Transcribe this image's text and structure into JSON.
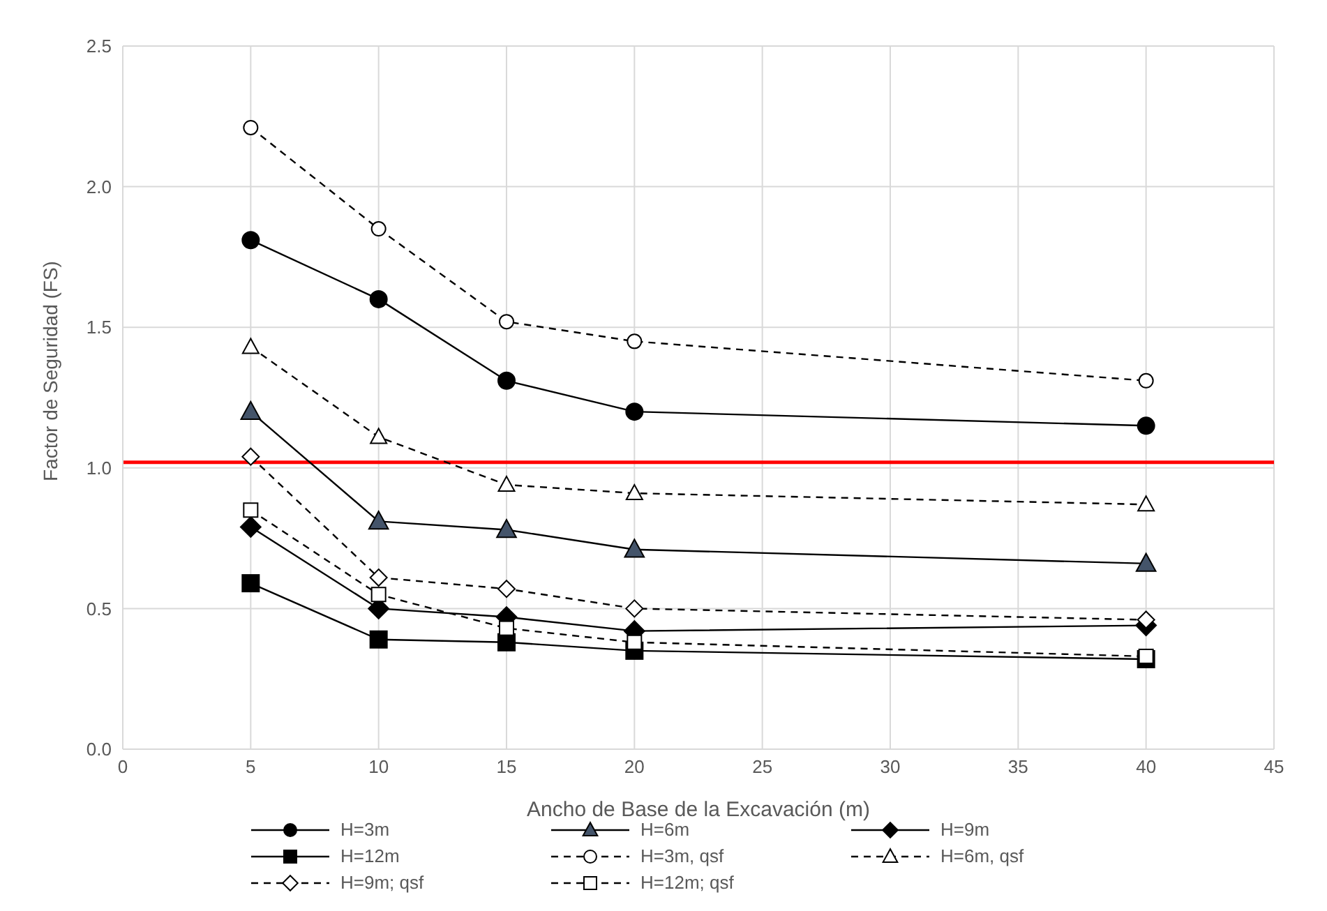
{
  "chart_data": {
    "type": "line",
    "xlabel": "Ancho de Base de la Excavación (m)",
    "ylabel": "Factor de Seguridad (FS)",
    "xlim": [
      0,
      45
    ],
    "xticks": [
      0,
      5,
      10,
      15,
      20,
      25,
      30,
      35,
      40,
      45
    ],
    "ylim": [
      0,
      2.5
    ],
    "yticks": [
      {
        "value": 0,
        "label": "0.0"
      },
      {
        "value": 0.5,
        "label": "0.5"
      },
      {
        "value": 1,
        "label": "1.0"
      },
      {
        "value": 1.5,
        "label": "1.5"
      },
      {
        "value": 2,
        "label": "2.0"
      },
      {
        "value": 2.5,
        "label": "2.5"
      }
    ],
    "grid": true,
    "legend": "bottom",
    "x": [
      5,
      10,
      15,
      20,
      40
    ],
    "series": [
      {
        "name": "H=3m",
        "color": "#000000",
        "marker": "circle",
        "line_style": "solid",
        "values": [
          1.81,
          1.6,
          1.31,
          1.2,
          1.15
        ]
      },
      {
        "name": "H=6m",
        "color": "#44546a",
        "marker": "triangle",
        "line_style": "solid",
        "values": [
          1.2,
          0.81,
          0.78,
          0.71,
          0.66
        ]
      },
      {
        "name": "H=9m",
        "color": "#000000",
        "marker": "diamond",
        "line_style": "solid",
        "values": [
          0.79,
          0.5,
          0.47,
          0.42,
          0.44
        ]
      },
      {
        "name": "H=12m",
        "color": "#000000",
        "marker": "square",
        "line_style": "solid",
        "values": [
          0.59,
          0.39,
          0.38,
          0.35,
          0.32
        ]
      },
      {
        "name": "H=3m, qsf",
        "color": "#000000",
        "marker": "circle",
        "line_style": "dashed",
        "values": [
          2.21,
          1.85,
          1.52,
          1.45,
          1.31
        ]
      },
      {
        "name": "H=6m, qsf",
        "color": "#000000",
        "marker": "triangle",
        "line_style": "dashed",
        "values": [
          1.43,
          1.11,
          0.94,
          0.91,
          0.87
        ]
      },
      {
        "name": "H=9m; qsf",
        "color": "#000000",
        "marker": "diamond",
        "line_style": "dashed",
        "values": [
          1.04,
          0.61,
          0.57,
          0.5,
          0.46
        ]
      },
      {
        "name": "H=12m; qsf",
        "color": "#000000",
        "marker": "square",
        "line_style": "dashed",
        "values": [
          0.85,
          0.55,
          0.43,
          0.38,
          0.33
        ]
      }
    ],
    "ref_lines": [
      {
        "axis": "y",
        "value": 1.02,
        "color": "#ff0000",
        "line_style": "solid"
      }
    ]
  }
}
